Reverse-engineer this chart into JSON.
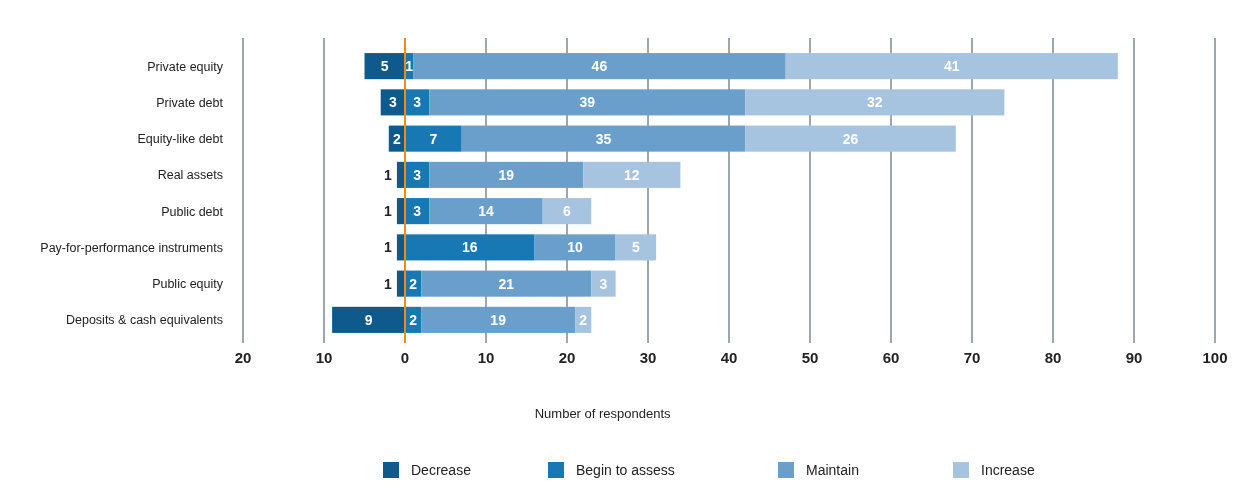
{
  "chart_data": {
    "type": "bar",
    "orientation": "horizontal",
    "stacked": true,
    "categories": [
      "Private equity",
      "Private debt",
      "Equity-like debt",
      "Real assets",
      "Public debt",
      "Pay-for-performance instruments",
      "Public equity",
      "Deposits & cash equivalents"
    ],
    "series": [
      {
        "name": "Decrease",
        "color": "#0e5a8c",
        "values": [
          5,
          3,
          2,
          1,
          1,
          1,
          1,
          9
        ],
        "base": [
          -5,
          -3,
          -2,
          -1,
          -1,
          -1,
          -1,
          -9
        ]
      },
      {
        "name": "Begin to assess",
        "color": "#1778b4",
        "values": [
          1,
          3,
          7,
          3,
          3,
          16,
          2,
          2
        ]
      },
      {
        "name": "Maintain",
        "color": "#6a9fcb",
        "values": [
          46,
          39,
          35,
          19,
          14,
          10,
          21,
          19
        ]
      },
      {
        "name": "Increase",
        "color": "#a6c3e0",
        "values": [
          41,
          32,
          26,
          12,
          6,
          5,
          3,
          2
        ]
      }
    ],
    "data_labels": true,
    "xlim": [
      -20,
      100
    ],
    "xticks": [
      {
        "value": -20,
        "label": "20"
      },
      {
        "value": -10,
        "label": "10"
      },
      0,
      10,
      20,
      30,
      40,
      50,
      60,
      70,
      80,
      90,
      100
    ],
    "xlabel": "Number of respondents",
    "ref_lines": [
      {
        "axis": "x",
        "value": 0,
        "color": "#f08a1c"
      }
    ],
    "grid": "x",
    "legend": "bottom"
  }
}
